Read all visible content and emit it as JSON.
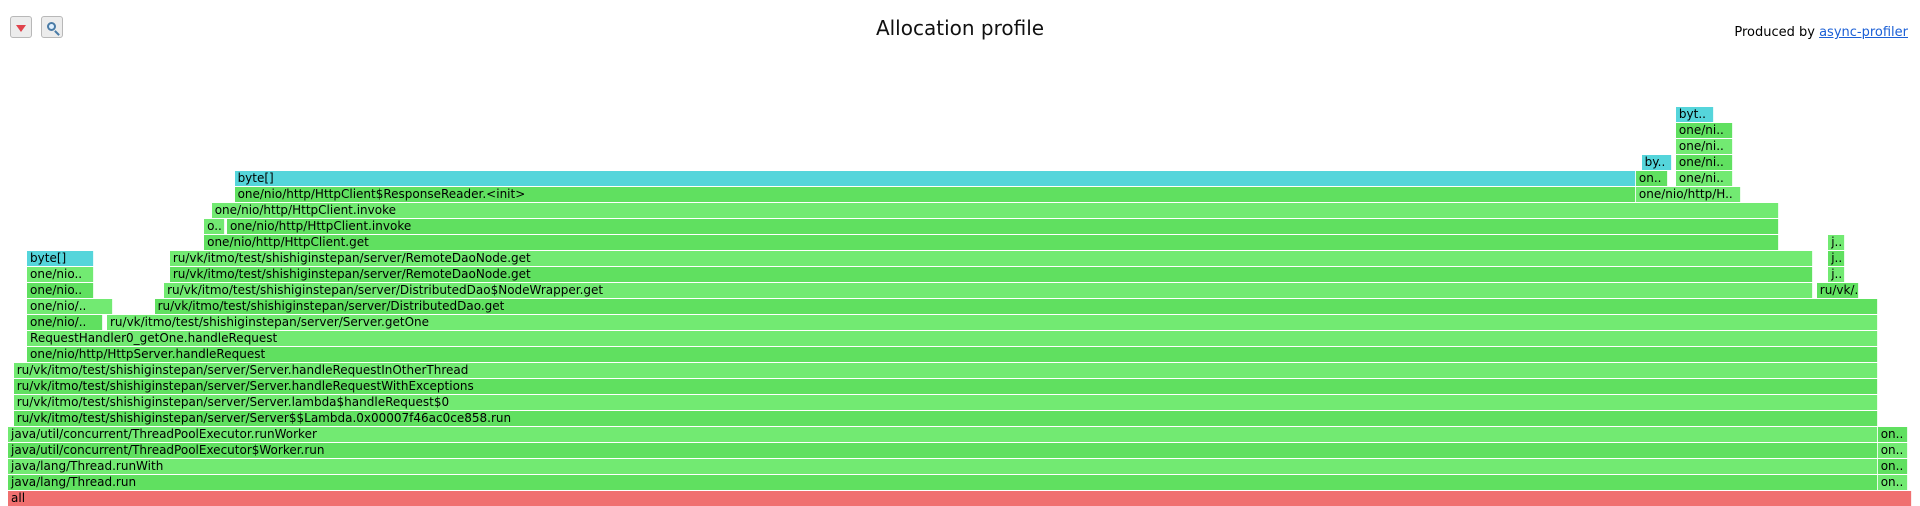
{
  "title": "Allocation profile",
  "toolbar": {
    "reverse_icon": "reverse-icon",
    "search_icon": "search-icon"
  },
  "attribution": {
    "prefix": "Produced by ",
    "link": "async-profiler"
  },
  "colors": {
    "java": "#60e060",
    "allocation": "#55d5db",
    "root": "#f07070"
  },
  "frames": [
    [
      "all",
      0,
      100,
      0,
      "r"
    ],
    [
      "java/lang/Thread.run",
      0,
      98.2,
      1,
      "g"
    ],
    [
      "on..",
      98.2,
      1.6,
      1,
      "g2"
    ],
    [
      "java/lang/Thread.runWith",
      0,
      98.2,
      2,
      "g2"
    ],
    [
      "on..",
      98.2,
      1.6,
      2,
      "g"
    ],
    [
      "java/util/concurrent/ThreadPoolExecutor$Worker.run",
      0,
      98.2,
      3,
      "g"
    ],
    [
      "on..",
      98.2,
      1.6,
      3,
      "g2"
    ],
    [
      "java/util/concurrent/ThreadPoolExecutor.runWorker",
      0,
      98.2,
      4,
      "g2"
    ],
    [
      "on..",
      98.2,
      1.6,
      4,
      "g"
    ],
    [
      "ru/vk/itmo/test/shishiginstepan/server/Server$$Lambda.0x00007f46ac0ce858.run",
      0.3,
      97.9,
      5,
      "g"
    ],
    [
      "ru/vk/itmo/test/shishiginstepan/server/Server.lambda$handleRequest$0",
      0.3,
      97.9,
      6,
      "g2"
    ],
    [
      "ru/vk/itmo/test/shishiginstepan/server/Server.handleRequestWithExceptions",
      0.3,
      97.9,
      7,
      "g"
    ],
    [
      "ru/vk/itmo/test/shishiginstepan/server/Server.handleRequestInOtherThread",
      0.3,
      97.9,
      8,
      "g2"
    ],
    [
      "one/nio/http/HttpServer.handleRequest",
      1.0,
      97.2,
      9,
      "g"
    ],
    [
      "RequestHandler0_getOne.handleRequest",
      1.0,
      97.2,
      10,
      "g2"
    ],
    [
      "one/nio/..",
      1.0,
      4.0,
      11,
      "g"
    ],
    [
      "ru/vk/itmo/test/shishiginstepan/server/Server.getOne",
      5.2,
      93.0,
      11,
      "g2"
    ],
    [
      "one/nio/..",
      1.0,
      4.5,
      12,
      "g2"
    ],
    [
      "ru/vk/itmo/test/shishiginstepan/server/DistributedDao.get",
      7.7,
      90.5,
      12,
      "g"
    ],
    [
      "one/nio..",
      1.0,
      3.5,
      13,
      "g"
    ],
    [
      "ru/vk/itmo/test/shishiginstepan/server/DistributedDao$NodeWrapper.get",
      8.2,
      86.6,
      13,
      "g2"
    ],
    [
      "ru/vk/..",
      95.0,
      2.2,
      13,
      "g"
    ],
    [
      "one/nio..",
      1.0,
      3.5,
      14,
      "g2"
    ],
    [
      "ru/vk/itmo/test/shishiginstepan/server/RemoteDaoNode.get",
      8.5,
      86.3,
      14,
      "g"
    ],
    [
      "j..",
      95.6,
      0.9,
      14,
      "g2"
    ],
    [
      "byte[]",
      1.0,
      3.5,
      15,
      "a"
    ],
    [
      "ru/vk/itmo/test/shishiginstepan/server/RemoteDaoNode.get",
      8.5,
      86.3,
      15,
      "g2"
    ],
    [
      "j..",
      95.6,
      0.9,
      15,
      "g"
    ],
    [
      "one/nio/http/HttpClient.get",
      10.3,
      82.7,
      16,
      "g"
    ],
    [
      "j..",
      95.6,
      0.9,
      16,
      "g2"
    ],
    [
      "o..",
      10.3,
      1.1,
      17,
      "g2"
    ],
    [
      "one/nio/http/HttpClient.invoke",
      11.5,
      81.5,
      17,
      "g"
    ],
    [
      "one/nio/http/HttpClient.invoke",
      10.7,
      82.3,
      18,
      "g2"
    ],
    [
      "one/nio/http/HttpClient$ResponseReader.<init>",
      11.9,
      73.6,
      19,
      "g"
    ],
    [
      "one/nio/http/H..",
      85.5,
      5.5,
      19,
      "g2"
    ],
    [
      "byte[]",
      11.9,
      73.6,
      20,
      "a"
    ],
    [
      "on..",
      85.5,
      1.7,
      20,
      "g"
    ],
    [
      "one/ni..",
      87.6,
      3.0,
      20,
      "g2"
    ],
    [
      "by..",
      85.8,
      1.6,
      21,
      "a"
    ],
    [
      "one/ni..",
      87.6,
      3.0,
      21,
      "g"
    ],
    [
      "one/ni..",
      87.6,
      3.0,
      22,
      "g2"
    ],
    [
      "one/ni..",
      87.6,
      3.0,
      23,
      "g"
    ],
    [
      "byt..",
      87.6,
      2.0,
      24,
      "a"
    ]
  ]
}
